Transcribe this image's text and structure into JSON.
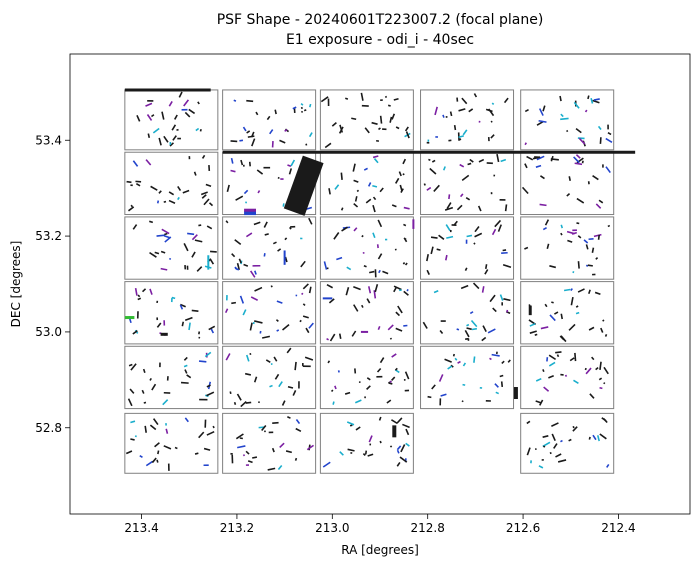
{
  "chart_data": {
    "type": "scatter",
    "title": "PSF Shape - 20240601T223007.2 (focal plane)",
    "subtitle": "E1 exposure - odi_i - 40sec",
    "xlabel": "RA [degrees]",
    "ylabel": "DEC [degrees]",
    "xlim": [
      213.55,
      212.25
    ],
    "ylim": [
      52.62,
      53.58
    ],
    "x_inverted": true,
    "grid": false,
    "xticks": [
      213.4,
      213.2,
      213.0,
      212.8,
      212.6,
      212.4
    ],
    "xtick_labels": [
      "213.4",
      "213.2",
      "213.0",
      "212.8",
      "212.6",
      "212.4"
    ],
    "yticks": [
      52.8,
      53.0,
      53.2,
      53.4
    ],
    "ytick_labels": [
      "52.8",
      "53.0",
      "53.2",
      "53.4"
    ],
    "ota_grid": {
      "ra_cols": [
        [
          213.435,
          213.24
        ],
        [
          213.23,
          213.035
        ],
        [
          213.025,
          212.83
        ],
        [
          212.815,
          212.62
        ],
        [
          212.605,
          212.41
        ]
      ],
      "dec_rows": [
        [
          53.38,
          53.505
        ],
        [
          53.245,
          53.375
        ],
        [
          53.11,
          53.24
        ],
        [
          52.975,
          53.105
        ],
        [
          52.84,
          52.97
        ],
        [
          52.705,
          52.83
        ]
      ],
      "missing": [
        [
          5,
          3
        ]
      ]
    },
    "colors": {
      "frame": "#808080",
      "whisker": "#1a1a1a",
      "blue": "#2244cc",
      "purple": "#7b1fa2",
      "teal": "#1aaecc",
      "green": "#33bb33"
    },
    "highlights": [
      {
        "x": 213.435,
        "x2": 213.255,
        "y": 53.505,
        "y2": 53.505,
        "color": "whisker",
        "w": 3
      },
      {
        "x": 213.23,
        "x2": 212.365,
        "y": 53.375,
        "y2": 53.375,
        "color": "whisker",
        "w": 3
      },
      {
        "x": 213.08,
        "x2": 213.04,
        "y": 53.25,
        "y2": 53.36,
        "color": "whisker",
        "w": 22
      },
      {
        "x": 213.185,
        "x2": 213.16,
        "y": 53.248,
        "y2": 53.248,
        "color": "blue",
        "w": 4
      },
      {
        "x": 213.185,
        "x2": 213.16,
        "y": 53.254,
        "y2": 53.254,
        "color": "purple",
        "w": 3
      },
      {
        "x": 213.435,
        "x2": 213.415,
        "y": 53.03,
        "y2": 53.03,
        "color": "green",
        "w": 3
      },
      {
        "x": 212.615,
        "x2": 212.615,
        "y": 52.86,
        "y2": 52.885,
        "color": "whisker",
        "w": 4
      },
      {
        "x": 212.87,
        "x2": 212.87,
        "y": 52.78,
        "y2": 52.805,
        "color": "whisker",
        "w": 4
      },
      {
        "x": 212.585,
        "x2": 212.585,
        "y": 53.035,
        "y2": 53.055,
        "color": "whisker",
        "w": 3
      },
      {
        "x": 213.36,
        "x2": 213.345,
        "y": 52.995,
        "y2": 52.995,
        "color": "whisker",
        "w": 3
      },
      {
        "x": 212.83,
        "x2": 212.83,
        "y": 53.215,
        "y2": 53.235,
        "color": "purple",
        "w": 2
      },
      {
        "x": 213.02,
        "x2": 213.0,
        "y": 53.07,
        "y2": 53.07,
        "color": "blue",
        "w": 2
      },
      {
        "x": 212.94,
        "x2": 212.925,
        "y": 53.0,
        "y2": 53.0,
        "color": "purple",
        "w": 2
      },
      {
        "x": 213.1,
        "x2": 213.1,
        "y": 53.17,
        "y2": 53.14,
        "color": "blue",
        "w": 2
      },
      {
        "x": 213.26,
        "x2": 213.26,
        "y": 53.13,
        "y2": 53.16,
        "color": "teal",
        "w": 2
      }
    ]
  }
}
